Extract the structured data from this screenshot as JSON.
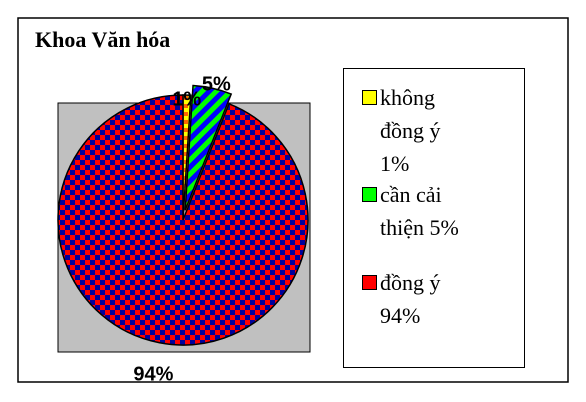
{
  "chart_data": {
    "type": "pie",
    "title": "Khoa  Văn hóa",
    "categories": [
      "không đồng ý 1%",
      "cần cải thiện 5%",
      "đồng ý 94%"
    ],
    "values": [
      1,
      5,
      94
    ],
    "value_labels": [
      "1%",
      "5%",
      "94%"
    ],
    "colors": [
      "#ffff00",
      "#00ff00",
      "#ff0000"
    ]
  }
}
